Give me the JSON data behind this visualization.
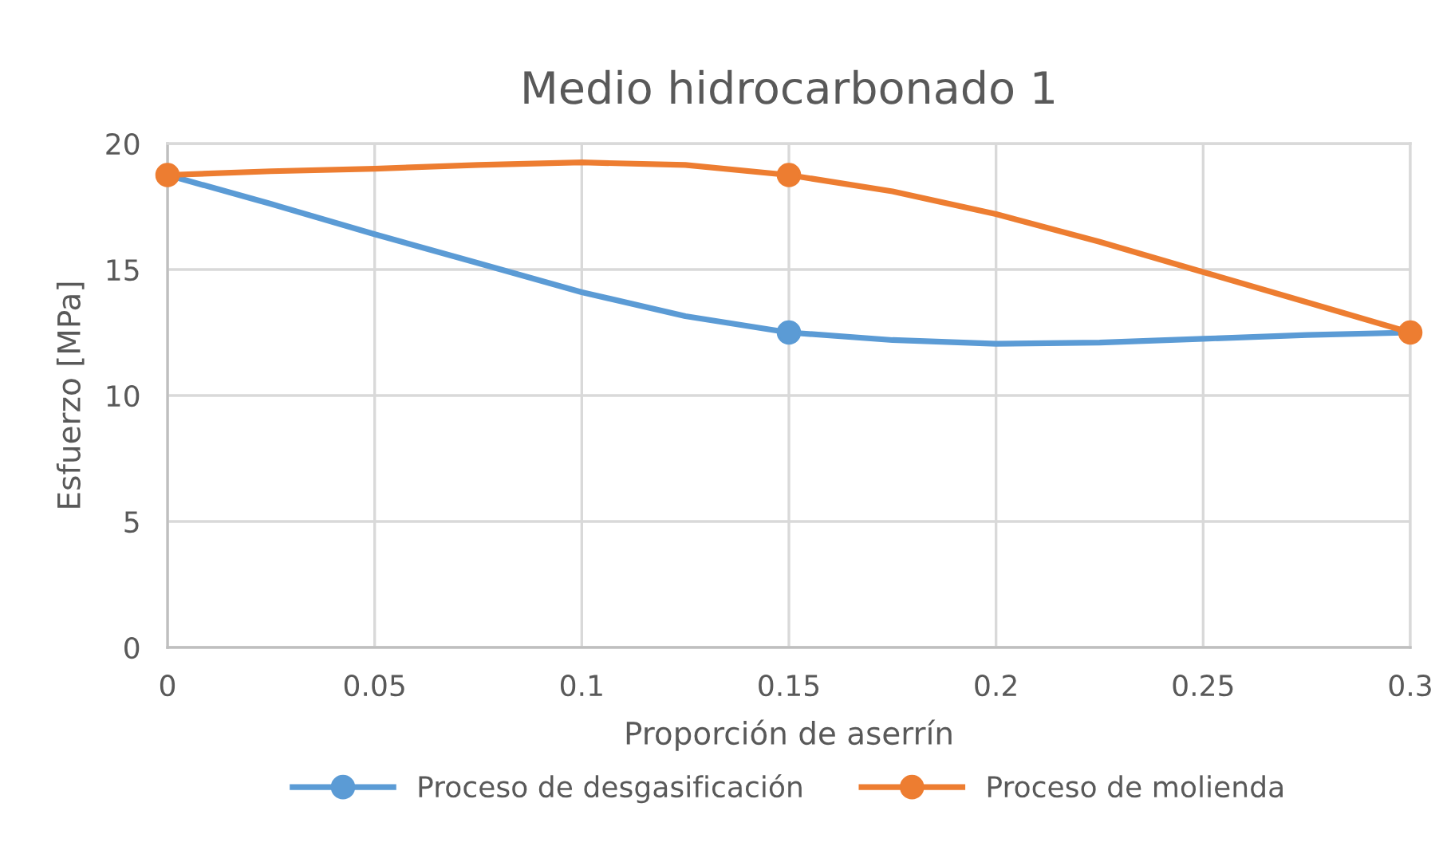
{
  "chart_data": {
    "type": "line",
    "title": "Medio hidrocarbonado 1",
    "xlabel": "Proporción de aserrín",
    "ylabel": "Esfuerzo [MPa]",
    "x": [
      0,
      0.025,
      0.05,
      0.075,
      0.1,
      0.125,
      0.15,
      0.175,
      0.2,
      0.225,
      0.25,
      0.275,
      0.3
    ],
    "series": [
      {
        "name": "Proceso de desgasificación",
        "color": "#5b9bd5",
        "marker": "none",
        "values": [
          18.75,
          17.6,
          16.4,
          15.25,
          14.1,
          13.15,
          12.5,
          12.2,
          12.05,
          12.1,
          12.25,
          12.4,
          12.5
        ]
      },
      {
        "name": "Proceso de molienda",
        "color": "#ed7d31",
        "marker": "none",
        "values": [
          18.75,
          18.9,
          19.0,
          19.15,
          19.25,
          19.15,
          18.75,
          18.1,
          17.2,
          16.1,
          14.9,
          13.7,
          12.5
        ]
      },
      {
        "type": "scatter",
        "color": "#5b9bd5",
        "x": [
          0.15
        ],
        "values": [
          12.5
        ]
      },
      {
        "type": "scatter",
        "color": "#ed7d31",
        "x": [
          0,
          0.15,
          0.3
        ],
        "values": [
          18.75,
          18.75,
          12.5
        ]
      }
    ],
    "xlim": [
      0,
      0.3
    ],
    "xticks": [
      0,
      0.05,
      0.1,
      0.15,
      0.2,
      0.25,
      0.3
    ],
    "ylim": [
      0,
      20
    ],
    "yticks": [
      0,
      5,
      10,
      15,
      20
    ],
    "grid": true,
    "legend": "bottom",
    "marker": "circle",
    "line_style": "solid"
  }
}
